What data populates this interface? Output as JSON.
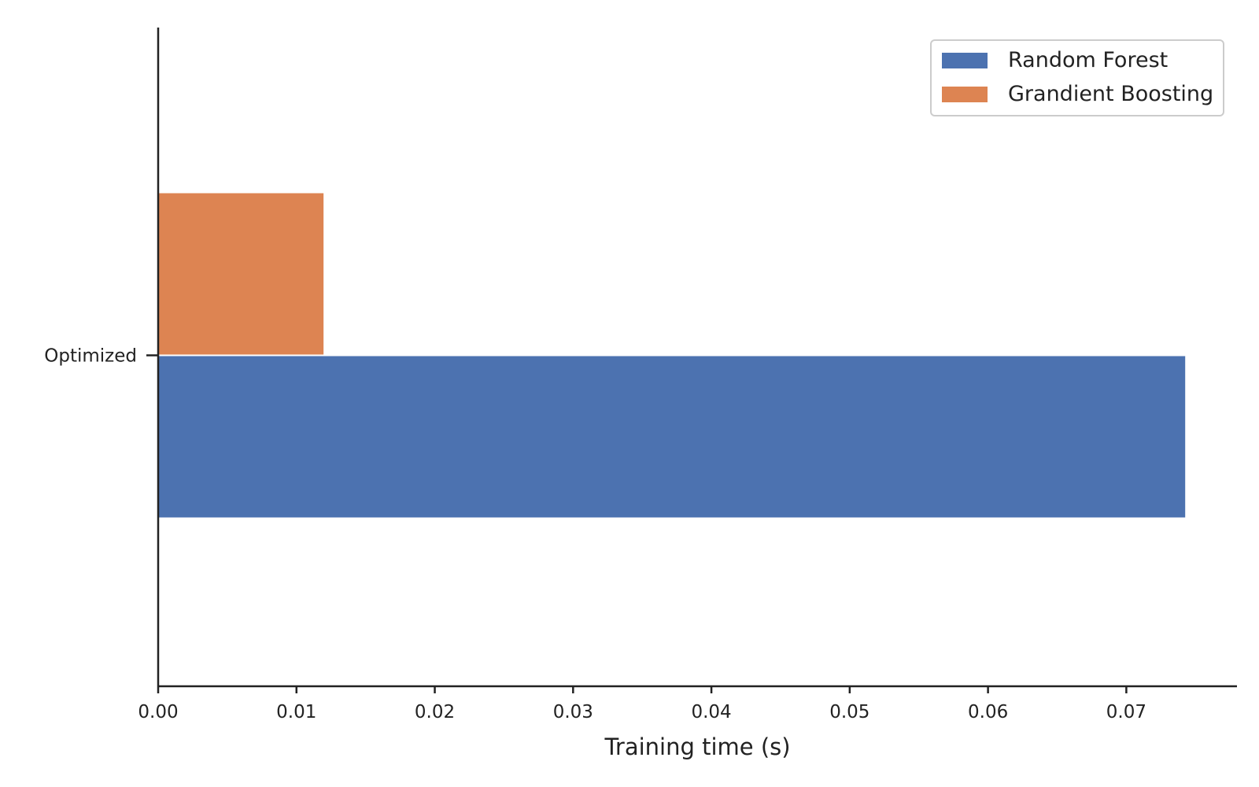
{
  "chart_data": {
    "type": "bar",
    "orientation": "horizontal",
    "categories": [
      "Optimized"
    ],
    "series": [
      {
        "name": "Random Forest",
        "values": [
          0.0742
        ],
        "color": "#4c72b0"
      },
      {
        "name": "Grandient Boosting",
        "values": [
          0.0119
        ],
        "color": "#dd8452"
      }
    ],
    "xlabel": "Training time (s)",
    "ylabel": "",
    "xlim": [
      0,
      0.078
    ],
    "xticks": [
      0.0,
      0.01,
      0.02,
      0.03,
      0.04,
      0.05,
      0.06,
      0.07
    ],
    "xtick_labels": [
      "0.00",
      "0.01",
      "0.02",
      "0.03",
      "0.04",
      "0.05",
      "0.06",
      "0.07"
    ],
    "grid": false,
    "legend_position": "top-right"
  }
}
